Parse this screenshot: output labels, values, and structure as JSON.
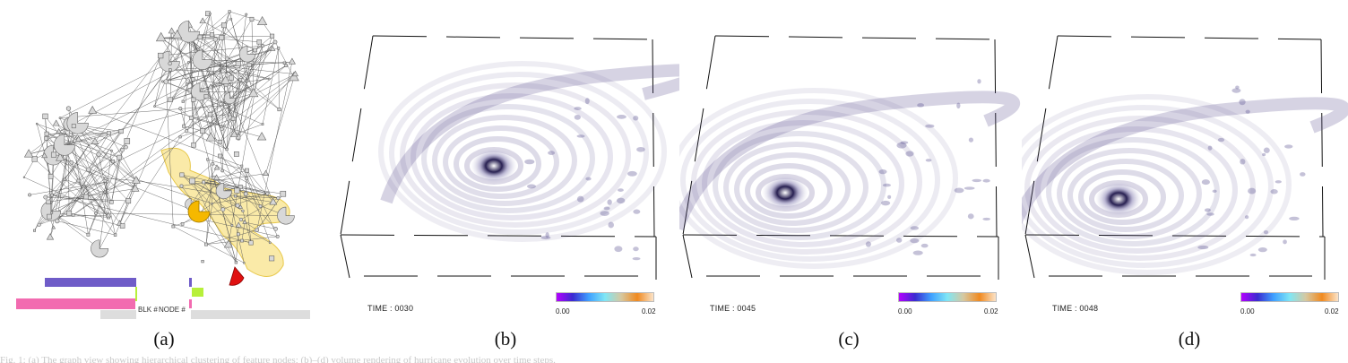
{
  "panels": [
    {
      "id": "a",
      "caption": "(a)"
    },
    {
      "id": "b",
      "caption": "(b)",
      "time_label": "TIME : 0030",
      "colorbar_min": "0.00",
      "colorbar_max": "0.02"
    },
    {
      "id": "c",
      "caption": "(c)",
      "time_label": "TIME : 0045",
      "colorbar_min": "0.00",
      "colorbar_max": "0.02"
    },
    {
      "id": "d",
      "caption": "(d)",
      "time_label": "TIME : 0048",
      "colorbar_min": "0.00",
      "colorbar_max": "0.02"
    }
  ],
  "graph_panel": {
    "blk_label": "BLK #",
    "node_label": "NODE #"
  },
  "colors": {
    "graph_edges": "#555555",
    "graph_nodes": "#d8d8d8",
    "highlight_region": "#f7df7a",
    "highlight_node_orange": "#f5b800",
    "highlight_node_red": "#e01010",
    "bar_purple": "#6f5cc8",
    "bar_pink": "#f26bb0",
    "bar_grey": "#dddddd",
    "bar_green": "#b7f03a",
    "volume_tint": "#5a4f8e",
    "colorbar_stops": [
      "#b400ff",
      "#3a2bd0",
      "#3fa0ff",
      "#7fe6f5",
      "#d6c8a0",
      "#f08a20",
      "#fbe3c8"
    ]
  },
  "footer_text": "Fig. 1: (a) The graph view showing hierarchical clustering of feature nodes; (b)–(d) volume rendering of hurricane evolution over time steps."
}
